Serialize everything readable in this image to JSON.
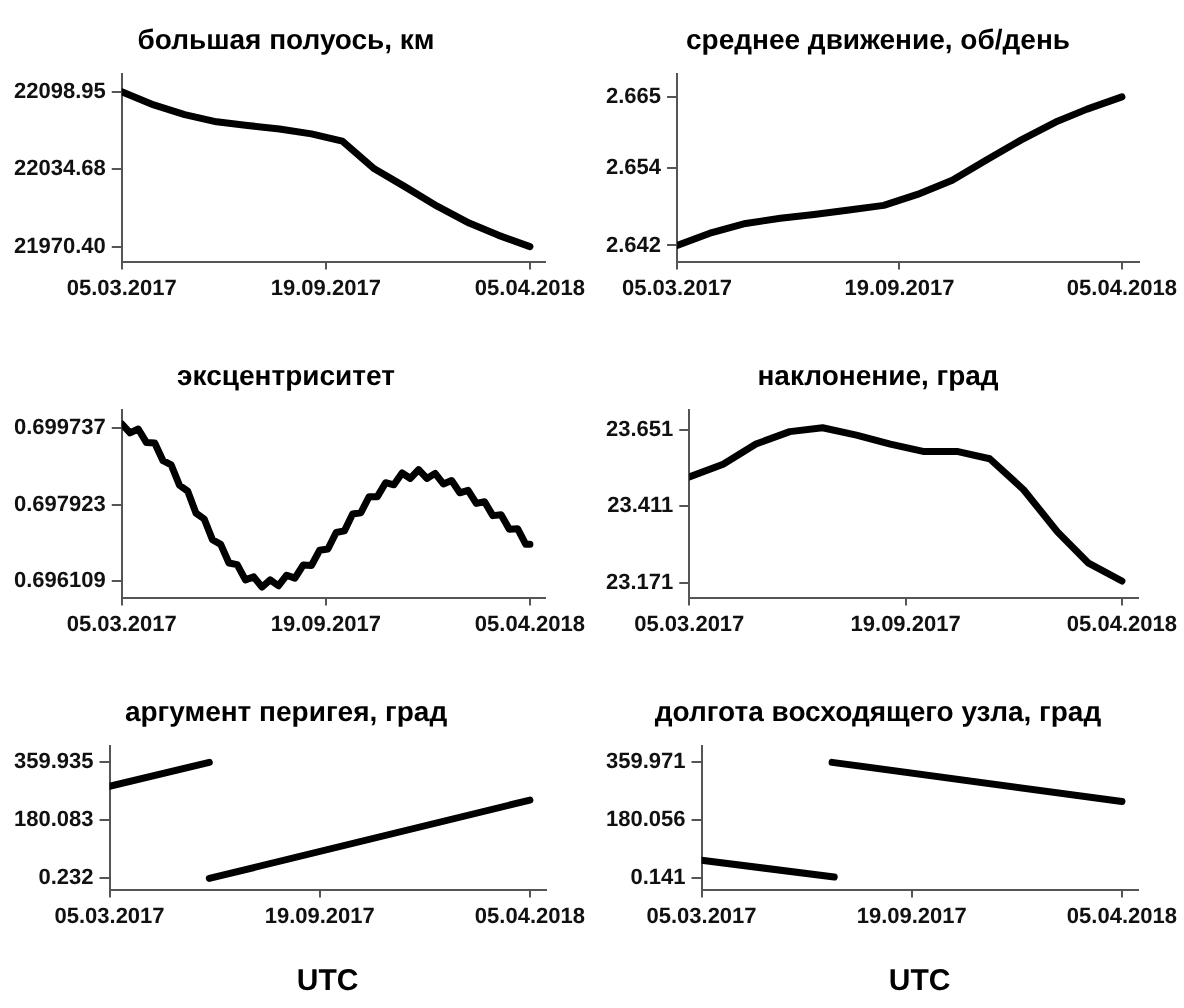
{
  "chart_data": [
    {
      "type": "line",
      "title": "большая полуось, км",
      "x": [
        "2017-03-05",
        "2017-04-05",
        "2017-05-05",
        "2017-06-05",
        "2017-07-05",
        "2017-08-05",
        "2017-09-05",
        "2017-10-05",
        "2017-11-05",
        "2017-12-05",
        "2018-01-05",
        "2018-02-05",
        "2018-03-05",
        "2018-04-05"
      ],
      "values": [
        22098.95,
        22088,
        22080,
        22074,
        22071,
        22068,
        22064,
        22058,
        22035,
        22020,
        22004,
        21990,
        21980,
        21970.4
      ],
      "color": "#000000",
      "xlim": [
        "2017-03-05",
        "2018-04-20"
      ],
      "ylim": [
        21958,
        22114
      ],
      "xticks": [
        {
          "value": "2017-03-05",
          "label": "05.03.2017"
        },
        {
          "value": "2017-09-19",
          "label": "19.09.2017"
        },
        {
          "value": "2018-04-05",
          "label": "05.04.2018"
        }
      ],
      "yticks": [
        {
          "value": 21970.4,
          "label": "21970.40"
        },
        {
          "value": 22034.68,
          "label": "22034.68"
        },
        {
          "value": 22098.95,
          "label": "22098.95"
        }
      ],
      "grid": false,
      "legend": false
    },
    {
      "type": "line",
      "title": "среднее движение, об/день",
      "x": [
        "2017-03-05",
        "2017-04-05",
        "2017-05-05",
        "2017-06-05",
        "2017-07-05",
        "2017-08-05",
        "2017-09-05",
        "2017-10-05",
        "2017-11-05",
        "2017-12-05",
        "2018-01-05",
        "2018-02-05",
        "2018-03-05",
        "2018-04-05"
      ],
      "values": [
        2.642,
        2.644,
        2.6454,
        2.6462,
        2.6468,
        2.6475,
        2.6482,
        2.6499,
        2.6521,
        2.6552,
        2.6583,
        2.6611,
        2.6631,
        2.665
      ],
      "color": "#000000",
      "xlim": [
        "2017-03-05",
        "2018-04-20"
      ],
      "ylim": [
        2.6395,
        2.6686
      ],
      "xticks": [
        {
          "value": "2017-03-05",
          "label": "05.03.2017"
        },
        {
          "value": "2017-09-19",
          "label": "19.09.2017"
        },
        {
          "value": "2018-04-05",
          "label": "05.04.2018"
        }
      ],
      "yticks": [
        2.642,
        2.654,
        2.665
      ],
      "grid": false,
      "legend": false
    },
    {
      "type": "line",
      "title": "эксцентриситет",
      "x": [
        "2017-03-05",
        "2017-03-13",
        "2017-03-21",
        "2017-03-29",
        "2017-04-06",
        "2017-04-14",
        "2017-04-22",
        "2017-04-30",
        "2017-05-08",
        "2017-05-16",
        "2017-05-24",
        "2017-06-01",
        "2017-06-09",
        "2017-06-17",
        "2017-06-25",
        "2017-07-03",
        "2017-07-11",
        "2017-07-19",
        "2017-07-27",
        "2017-08-04",
        "2017-08-12",
        "2017-08-20",
        "2017-08-28",
        "2017-09-05",
        "2017-09-13",
        "2017-09-21",
        "2017-09-29",
        "2017-10-07",
        "2017-10-15",
        "2017-10-23",
        "2017-10-31",
        "2017-11-08",
        "2017-11-16",
        "2017-11-24",
        "2017-12-02",
        "2017-12-10",
        "2017-12-18",
        "2017-12-26",
        "2018-01-03",
        "2018-01-11",
        "2018-01-19",
        "2018-01-27",
        "2018-02-04",
        "2018-02-12",
        "2018-02-20",
        "2018-02-28",
        "2018-03-08",
        "2018-03-16",
        "2018-03-24",
        "2018-04-01",
        "2018-04-05"
      ],
      "values": [
        0.69983,
        0.69962,
        0.69971,
        0.69939,
        0.69938,
        0.69896,
        0.69886,
        0.69838,
        0.69824,
        0.69772,
        0.69758,
        0.69709,
        0.69698,
        0.69654,
        0.6965,
        0.69614,
        0.69621,
        0.69597,
        0.69614,
        0.696,
        0.69625,
        0.69618,
        0.69649,
        0.69648,
        0.69684,
        0.69687,
        0.69726,
        0.6973,
        0.6977,
        0.69773,
        0.69811,
        0.69811,
        0.69844,
        0.69839,
        0.69867,
        0.69854,
        0.69875,
        0.69854,
        0.69866,
        0.69841,
        0.69849,
        0.6982,
        0.69826,
        0.69795,
        0.69799,
        0.69766,
        0.69768,
        0.69734,
        0.69735,
        0.69698,
        0.69698
      ],
      "color": "#000000",
      "xlim": [
        "2017-03-05",
        "2018-04-20"
      ],
      "ylim": [
        0.69572,
        0.70017
      ],
      "xticks": [
        {
          "value": "2017-03-05",
          "label": "05.03.2017"
        },
        {
          "value": "2017-09-19",
          "label": "19.09.2017"
        },
        {
          "value": "2018-04-05",
          "label": "05.04.2018"
        }
      ],
      "yticks": [
        0.696109,
        0.697923,
        0.699737
      ],
      "grid": false,
      "legend": false
    },
    {
      "type": "line",
      "title": "наклонение, град",
      "x": [
        "2017-03-05",
        "2017-04-05",
        "2017-05-05",
        "2017-06-05",
        "2017-07-05",
        "2017-08-05",
        "2017-09-05",
        "2017-10-05",
        "2017-11-05",
        "2017-12-05",
        "2018-01-05",
        "2018-02-05",
        "2018-03-05",
        "2018-04-05"
      ],
      "values": [
        23.503,
        23.543,
        23.606,
        23.645,
        23.657,
        23.634,
        23.606,
        23.583,
        23.583,
        23.56,
        23.463,
        23.331,
        23.234,
        23.177
      ],
      "color": "#000000",
      "xlim": [
        "2017-03-05",
        "2018-04-20"
      ],
      "ylim": [
        23.125,
        23.714
      ],
      "xticks": [
        {
          "value": "2017-03-05",
          "label": "05.03.2017"
        },
        {
          "value": "2017-09-19",
          "label": "19.09.2017"
        },
        {
          "value": "2018-04-05",
          "label": "05.04.2018"
        }
      ],
      "yticks": [
        23.171,
        23.411,
        23.651
      ],
      "grid": false,
      "legend": false
    },
    {
      "type": "line",
      "title": "аргумент перигея, град",
      "xlabel": "UTC",
      "series": [
        {
          "color": "#000000",
          "x": [
            "2017-03-05",
            "2017-06-07"
          ],
          "values": [
            286,
            360
          ]
        },
        {
          "color": "#000000",
          "x": [
            "2017-06-07",
            "2018-04-05"
          ],
          "values": [
            0.23,
            243
          ]
        }
      ],
      "xlim": [
        "2017-03-05",
        "2018-04-20"
      ],
      "ylim": [
        -34.4,
        412
      ],
      "xticks": [
        {
          "value": "2017-03-05",
          "label": "05.03.2017"
        },
        {
          "value": "2017-09-19",
          "label": "19.09.2017"
        },
        {
          "value": "2018-04-05",
          "label": "05.04.2018"
        }
      ],
      "yticks": [
        0.232,
        180.083,
        359.935
      ],
      "grid": false,
      "legend": false
    },
    {
      "type": "line",
      "title": "долгота восходящего узла, град",
      "xlabel": "UTC",
      "series": [
        {
          "color": "#000000",
          "x": [
            "2017-03-05",
            "2017-07-08"
          ],
          "values": [
            56.5,
            4.5
          ]
        },
        {
          "color": "#000000",
          "x": [
            "2017-07-06",
            "2018-04-05"
          ],
          "values": [
            360,
            238.6
          ]
        }
      ],
      "xlim": [
        "2017-03-05",
        "2018-04-20"
      ],
      "ylim": [
        -34.5,
        412
      ],
      "xticks": [
        {
          "value": "2017-03-05",
          "label": "05.03.2017"
        },
        {
          "value": "2017-09-19",
          "label": "19.09.2017"
        },
        {
          "value": "2018-04-05",
          "label": "05.04.2018"
        }
      ],
      "yticks": [
        0.141,
        180.056,
        359.971
      ],
      "grid": false,
      "legend": false
    }
  ]
}
